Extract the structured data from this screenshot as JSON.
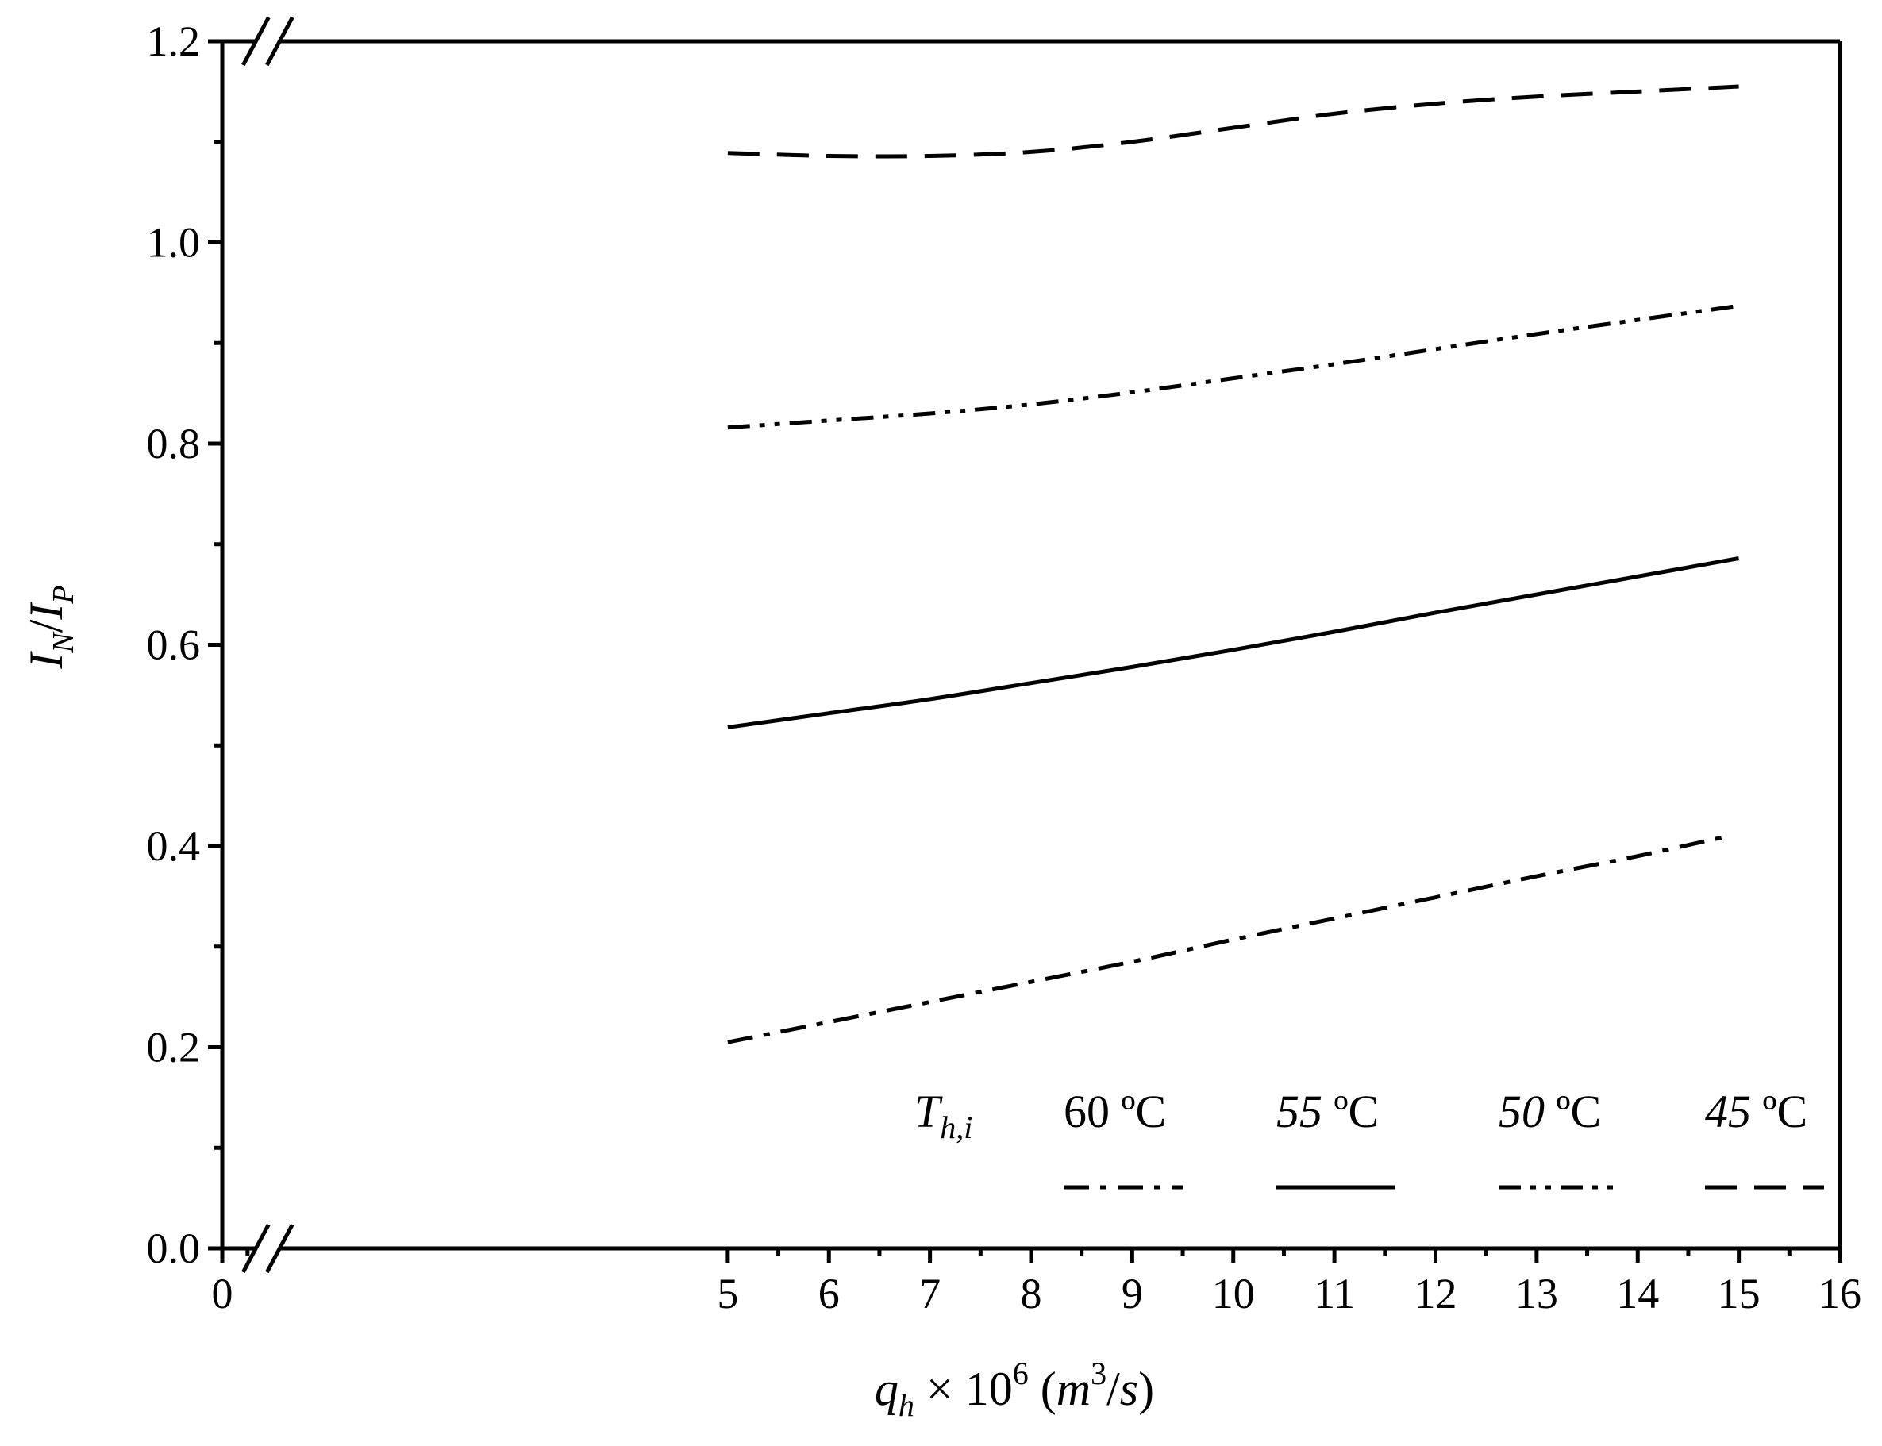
{
  "chart_data": {
    "type": "line",
    "x_axis": {
      "label_parts": [
        "q",
        "h",
        " × 10",
        "6",
        " (",
        "m",
        "3",
        "/",
        "s",
        ")"
      ],
      "ticks": [
        0,
        5,
        6,
        7,
        8,
        9,
        10,
        11,
        12,
        13,
        14,
        15,
        16
      ],
      "tick_labels": [
        "0",
        "5",
        "6",
        "7",
        "8",
        "9",
        "10",
        "11",
        "12",
        "13",
        "14",
        "15",
        "16"
      ],
      "range": [
        0,
        16
      ],
      "axis_break_between": [
        0,
        5
      ]
    },
    "y_axis": {
      "label_parts": [
        "I",
        "N",
        "/",
        "I",
        "P"
      ],
      "ticks": [
        0.0,
        0.2,
        0.4,
        0.6,
        0.8,
        1.0,
        1.2
      ],
      "tick_labels": [
        "0.0",
        "0.2",
        "0.4",
        "0.6",
        "0.8",
        "1.0",
        "1.2"
      ],
      "range": [
        0,
        1.2
      ]
    },
    "grid": false,
    "legend": {
      "placement": "bottom-right",
      "title_parts": [
        "T",
        "h,i"
      ],
      "entries": [
        {
          "series_index": 0,
          "number": "60",
          "unit": "ºC",
          "italic": false
        },
        {
          "series_index": 1,
          "number": "55",
          "unit": "ºC",
          "italic": true
        },
        {
          "series_index": 2,
          "number": "50",
          "unit": "ºC",
          "italic": true
        },
        {
          "series_index": 3,
          "number": "45",
          "unit": "ºC",
          "italic": true
        }
      ]
    },
    "series": [
      {
        "name": "60 ºC",
        "style": "dash-dot",
        "color": "#000000",
        "x": [
          5,
          6,
          7,
          8,
          9,
          10,
          11,
          12,
          13,
          14,
          14.9
        ],
        "y": [
          0.205,
          0.225,
          0.245,
          0.265,
          0.285,
          0.307,
          0.328,
          0.349,
          0.37,
          0.39,
          0.41
        ]
      },
      {
        "name": "55 ºC",
        "style": "solid",
        "color": "#000000",
        "x": [
          5,
          6,
          7,
          8,
          9,
          10,
          11,
          12,
          13,
          14,
          15
        ],
        "y": [
          0.518,
          0.532,
          0.546,
          0.562,
          0.578,
          0.595,
          0.613,
          0.632,
          0.65,
          0.668,
          0.686
        ]
      },
      {
        "name": "50 ºC",
        "style": "dash-dot-dot",
        "color": "#000000",
        "x": [
          5,
          6,
          7,
          8,
          9,
          10,
          11,
          12,
          13,
          14,
          15
        ],
        "y": [
          0.816,
          0.823,
          0.83,
          0.839,
          0.851,
          0.865,
          0.879,
          0.894,
          0.909,
          0.923,
          0.937
        ]
      },
      {
        "name": "45 ºC",
        "style": "dashed",
        "color": "#000000",
        "x": [
          5,
          6,
          7,
          8,
          9,
          10,
          11,
          12,
          13,
          14,
          15
        ],
        "y": [
          1.089,
          1.086,
          1.086,
          1.09,
          1.1,
          1.114,
          1.128,
          1.138,
          1.145,
          1.15,
          1.155
        ]
      }
    ]
  }
}
